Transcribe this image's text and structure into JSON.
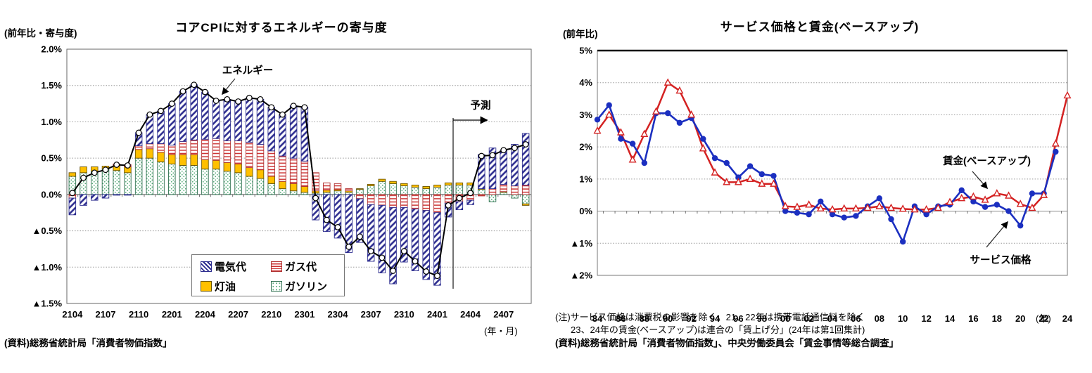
{
  "chart_data": [
    {
      "type": "bar",
      "stacked": true,
      "title": "コアCPIに対するエネルギーの寄与度",
      "axis_unit": "(前年比・寄与度)",
      "x_unit_label": "(年・月)",
      "source": "(資料)総務省統計局「消費者物価指数」",
      "annotations": {
        "energy": "エネルギー",
        "forecast": "予測"
      },
      "ylim": [
        -1.5,
        2.0
      ],
      "y_ticks": [
        {
          "v": 2.0,
          "label": "2.0%"
        },
        {
          "v": 1.5,
          "label": "1.5%"
        },
        {
          "v": 1.0,
          "label": "1.0%"
        },
        {
          "v": 0.5,
          "label": "0.5%"
        },
        {
          "v": 0.0,
          "label": "0.0%"
        },
        {
          "v": -0.5,
          "label": "▲0.5%"
        },
        {
          "v": -1.0,
          "label": "▲1.0%"
        },
        {
          "v": -1.5,
          "label": "▲1.5%"
        }
      ],
      "categories": [
        "2104",
        "2105",
        "2106",
        "2107",
        "2108",
        "2109",
        "2110",
        "2111",
        "2112",
        "2201",
        "2202",
        "2203",
        "2204",
        "2205",
        "2206",
        "2207",
        "2208",
        "2209",
        "2210",
        "2211",
        "2212",
        "2301",
        "2302",
        "2303",
        "2304",
        "2305",
        "2306",
        "2307",
        "2308",
        "2309",
        "2310",
        "2311",
        "2312",
        "2401",
        "2402",
        "2403",
        "2404",
        "2405",
        "2406",
        "2407",
        "2408",
        "2409"
      ],
      "x_label_step": 3,
      "forecast_start": "2403",
      "legend": [
        {
          "label": "電気代",
          "key": "electricity"
        },
        {
          "label": "ガス代",
          "key": "gas"
        },
        {
          "label": "灯油",
          "key": "kerosene"
        },
        {
          "label": "ガソリン",
          "key": "gasoline"
        }
      ],
      "series": [
        {
          "key": "gasoline",
          "name": "ガソリン",
          "values": [
            0.25,
            0.3,
            0.32,
            0.35,
            0.33,
            0.3,
            0.5,
            0.5,
            0.45,
            0.42,
            0.4,
            0.4,
            0.35,
            0.35,
            0.32,
            0.3,
            0.25,
            0.22,
            0.15,
            0.08,
            0.05,
            0.03,
            0.02,
            0.03,
            0.05,
            0.03,
            0.07,
            0.12,
            0.18,
            0.15,
            0.12,
            0.1,
            0.08,
            0.1,
            0.13,
            0.13,
            0.13,
            0.07,
            -0.1,
            0.03,
            -0.05,
            -0.13
          ]
        },
        {
          "key": "kerosene",
          "name": "灯油",
          "values": [
            0.05,
            0.08,
            0.06,
            0.04,
            0.07,
            0.08,
            0.12,
            0.13,
            0.13,
            0.13,
            0.15,
            0.15,
            0.13,
            0.12,
            0.12,
            0.12,
            0.12,
            0.12,
            0.1,
            0.1,
            0.1,
            0.08,
            0.03,
            0.03,
            0.02,
            0.02,
            0.01,
            0.02,
            0.03,
            0.03,
            0.03,
            0.03,
            0.03,
            0.03,
            0.03,
            0.03,
            0.03,
            0.01,
            0.0,
            0.01,
            0.0,
            -0.02
          ]
        },
        {
          "key": "gas",
          "name": "ガス代",
          "values": [
            -0.05,
            0.0,
            0.0,
            0.0,
            0.02,
            0.03,
            0.05,
            0.07,
            0.12,
            0.13,
            0.18,
            0.2,
            0.28,
            0.3,
            0.3,
            0.32,
            0.35,
            0.35,
            0.35,
            0.35,
            0.35,
            0.35,
            0.25,
            0.1,
            0.08,
            0.03,
            -0.06,
            -0.14,
            -0.15,
            -0.18,
            -0.18,
            -0.2,
            -0.22,
            -0.25,
            -0.12,
            -0.1,
            -0.08,
            -0.02,
            0.08,
            0.1,
            0.12,
            0.13
          ]
        },
        {
          "key": "electricity",
          "name": "電気代",
          "values": [
            -0.23,
            -0.15,
            -0.08,
            -0.05,
            -0.01,
            -0.01,
            0.18,
            0.4,
            0.45,
            0.57,
            0.69,
            0.76,
            0.65,
            0.52,
            0.57,
            0.54,
            0.61,
            0.62,
            0.6,
            0.57,
            0.72,
            0.74,
            -0.35,
            -0.51,
            -0.6,
            -0.8,
            -0.6,
            -0.78,
            -0.93,
            -1.05,
            -0.75,
            -0.85,
            -0.95,
            -1.0,
            -0.19,
            -0.11,
            -0.06,
            0.47,
            0.56,
            0.47,
            0.57,
            0.71
          ]
        },
        {
          "key": "total",
          "name": "エネルギー",
          "render": "line",
          "values": [
            0.02,
            0.23,
            0.3,
            0.34,
            0.41,
            0.4,
            0.85,
            1.1,
            1.15,
            1.25,
            1.42,
            1.51,
            1.41,
            1.29,
            1.31,
            1.28,
            1.33,
            1.31,
            1.2,
            1.1,
            1.22,
            1.2,
            -0.05,
            -0.35,
            -0.45,
            -0.72,
            -0.58,
            -0.78,
            -0.87,
            -1.05,
            -0.78,
            -0.92,
            -1.06,
            -1.12,
            -0.15,
            -0.05,
            0.02,
            0.53,
            0.54,
            0.61,
            0.64,
            0.69
          ]
        }
      ],
      "colors": {
        "electricity": "#2d2d8f",
        "gas": "#cc3333",
        "kerosene": "#ffc000",
        "gasoline": "#55aa77",
        "total_line": "#000000"
      }
    },
    {
      "type": "line",
      "title": "サービス価格と賃金(ベースアップ)",
      "axis_unit": "(前年比)",
      "x_unit_label": "(年)",
      "note1": "(注)サービス価格は消費税の影響を除く。21、22年は携帯電話通信料を除く",
      "note2": "23、24年の賃金(ベースアップ)は連合の「賃上げ分」(24年は第1回集計)",
      "source": "(資料)総務省統計局「消費者物価指数」、中央労働委員会「賃金事情等総合調査」",
      "ylim": [
        -2,
        5
      ],
      "y_ticks": [
        {
          "v": 5,
          "label": "5%"
        },
        {
          "v": 4,
          "label": "4%"
        },
        {
          "v": 3,
          "label": "3%"
        },
        {
          "v": 2,
          "label": "2%"
        },
        {
          "v": 1,
          "label": "1%"
        },
        {
          "v": 0,
          "label": "0%"
        },
        {
          "v": -1,
          "label": "▲1%"
        },
        {
          "v": -2,
          "label": "▲2%"
        }
      ],
      "x": [
        "84",
        "85",
        "86",
        "87",
        "88",
        "89",
        "90",
        "91",
        "92",
        "93",
        "94",
        "95",
        "96",
        "97",
        "98",
        "99",
        "00",
        "01",
        "02",
        "03",
        "04",
        "05",
        "06",
        "07",
        "08",
        "09",
        "10",
        "11",
        "12",
        "13",
        "14",
        "15",
        "16",
        "17",
        "18",
        "19",
        "20",
        "21",
        "22",
        "23",
        "24"
      ],
      "x_label_step": 2,
      "series": [
        {
          "key": "service",
          "name": "サービス価格",
          "color": "#1b2fc0",
          "marker": "circle",
          "values": [
            2.85,
            3.3,
            2.25,
            2.1,
            1.5,
            3.05,
            3.05,
            2.75,
            2.9,
            2.25,
            1.65,
            1.5,
            1.05,
            1.4,
            1.15,
            1.1,
            0.0,
            -0.05,
            -0.1,
            0.3,
            -0.1,
            -0.2,
            -0.15,
            0.15,
            0.4,
            -0.25,
            -0.95,
            0.15,
            -0.1,
            0.15,
            0.2,
            0.65,
            0.3,
            0.13,
            0.2,
            0.0,
            -0.45,
            0.55,
            0.55,
            1.85,
            null
          ]
        },
        {
          "key": "wage",
          "name": "賃金(ベースアップ)",
          "color": "#d42222",
          "marker": "triangle",
          "values": [
            2.5,
            3.0,
            2.45,
            1.6,
            2.4,
            3.1,
            4.0,
            3.75,
            3.0,
            1.95,
            1.2,
            0.9,
            0.9,
            1.0,
            0.85,
            0.85,
            0.15,
            0.13,
            0.2,
            0.08,
            0.05,
            0.08,
            0.08,
            0.1,
            0.15,
            0.1,
            0.07,
            0.05,
            0.05,
            0.1,
            0.28,
            0.4,
            0.45,
            0.35,
            0.55,
            0.48,
            0.22,
            0.1,
            0.5,
            2.1,
            3.6
          ]
        }
      ],
      "annotations": {
        "wage": "賃金(ベースアップ)",
        "service": "サービス価格"
      }
    }
  ]
}
